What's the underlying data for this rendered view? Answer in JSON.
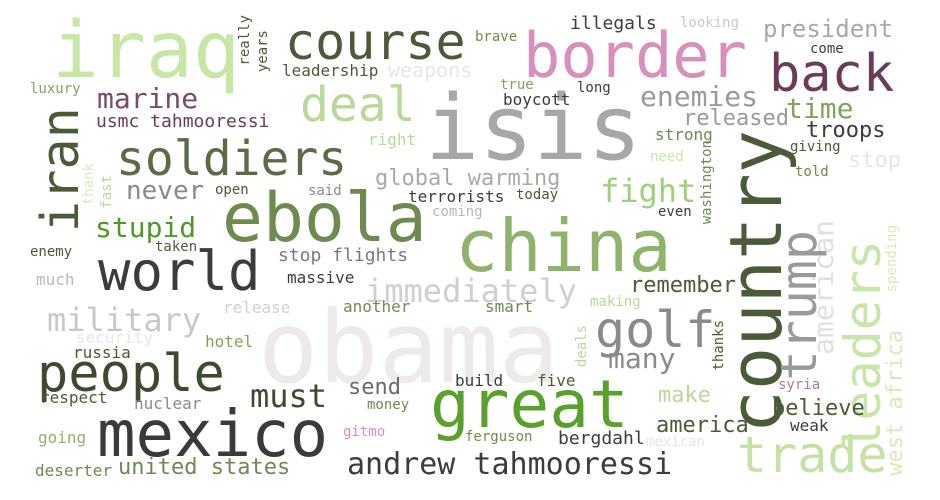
{
  "colors": {
    "background": "#ffffff",
    "dark": "#3a3a3a",
    "dark_green": "#4d5e3a",
    "green": "#5aa02c",
    "mid_green": "#7fa45a",
    "light_green": "#c5e8a4",
    "pink": "#d68fb8",
    "maroon": "#6b3c5a",
    "gray": "#a8a8a8",
    "light_gray": "#e8e6e6"
  },
  "words": [
    {
      "text": "obama",
      "color": "#eeeaea"
    },
    {
      "text": "isis",
      "color": "#a8a6a6"
    },
    {
      "text": "china",
      "color": "#8fb36a"
    },
    {
      "text": "border",
      "color": "#d88fbb"
    },
    {
      "text": "iraq",
      "color": "#c8e7a6"
    },
    {
      "text": "ebola",
      "color": "#6e8a50"
    },
    {
      "text": "country",
      "color": "#4b5a38"
    },
    {
      "text": "great",
      "color": "#5aa02c"
    },
    {
      "text": "mexico",
      "color": "#3a3a3a"
    },
    {
      "text": "world",
      "color": "#3c3c3c"
    },
    {
      "text": "course",
      "color": "#4b5a38"
    },
    {
      "text": "soldiers",
      "color": "#5a6b46"
    },
    {
      "text": "trump",
      "color": "#9a9a9a"
    },
    {
      "text": "back",
      "color": "#6b3c5a"
    },
    {
      "text": "trade",
      "color": "#c5e1a5"
    },
    {
      "text": "iran",
      "color": "#4b5a38"
    },
    {
      "text": "deal",
      "color": "#b8d99a"
    },
    {
      "text": "people",
      "color": "#3e4a30"
    },
    {
      "text": "golf",
      "color": "#8a8a8a"
    },
    {
      "text": "leaders",
      "color": "#c8e6a8"
    },
    {
      "text": "andrew tahmooressi",
      "color": "#3c3c3c"
    },
    {
      "text": "immediately",
      "color": "#cfcfcf"
    },
    {
      "text": "military",
      "color": "#c8c8c8"
    },
    {
      "text": "fight",
      "color": "#9fcf7a"
    },
    {
      "text": "must",
      "color": "#3e4a30"
    },
    {
      "text": "marine",
      "color": "#7a4a6a"
    },
    {
      "text": "enemies",
      "color": "#9a9a9a"
    },
    {
      "text": "stupid",
      "color": "#4f9a25"
    },
    {
      "text": "many",
      "color": "#8a8a8a"
    },
    {
      "text": "american",
      "color": "#e0e0e0"
    },
    {
      "text": "time",
      "color": "#7fa45a"
    },
    {
      "text": "never",
      "color": "#8a8a8a"
    },
    {
      "text": "troops",
      "color": "#3c3c3c"
    },
    {
      "text": "global warming",
      "color": "#a8a8a8"
    },
    {
      "text": "released",
      "color": "#9a9a9a"
    },
    {
      "text": "president",
      "color": "#a8a8a8"
    },
    {
      "text": "remember",
      "color": "#4b5a38"
    },
    {
      "text": "united states",
      "color": "#6e8a50"
    },
    {
      "text": "west africa",
      "color": "#d5ecbd"
    },
    {
      "text": "believe",
      "color": "#4b5a38"
    },
    {
      "text": "stop flights",
      "color": "#7a7a7a"
    },
    {
      "text": "america",
      "color": "#4b5a38"
    },
    {
      "text": "make",
      "color": "#b8d99a"
    },
    {
      "text": "send",
      "color": "#6a6a6a"
    },
    {
      "text": "weapons",
      "color": "#e6e6e6"
    },
    {
      "text": "usmc tahmooressi",
      "color": "#6b3c5a"
    },
    {
      "text": "bergdahl",
      "color": "#3c3c3c"
    },
    {
      "text": "terrorists",
      "color": "#3c3c3c"
    },
    {
      "text": "illegals",
      "color": "#3c3c3c"
    },
    {
      "text": "leadership",
      "color": "#4b5a38"
    },
    {
      "text": "boycott",
      "color": "#3c3c3c"
    },
    {
      "text": "strong",
      "color": "#6e8a50"
    },
    {
      "text": "right",
      "color": "#b8d99a"
    },
    {
      "text": "weak",
      "color": "#3c3c3c"
    },
    {
      "text": "build",
      "color": "#3c3c3c"
    },
    {
      "text": "five",
      "color": "#4b5a38"
    },
    {
      "text": "russia",
      "color": "#4b5a38"
    },
    {
      "text": "nuclear",
      "color": "#8a8a8a"
    },
    {
      "text": "respect",
      "color": "#4b5a38"
    },
    {
      "text": "deserter",
      "color": "#6e8a50"
    },
    {
      "text": "going",
      "color": "#8fb36a"
    },
    {
      "text": "hotel",
      "color": "#7fa45a"
    },
    {
      "text": "security",
      "color": "#e6e6e6"
    },
    {
      "text": "much",
      "color": "#b8b8b8"
    },
    {
      "text": "enemy",
      "color": "#4b5a38"
    },
    {
      "text": "taken",
      "color": "#4b5a38"
    },
    {
      "text": "open",
      "color": "#4b5a38"
    },
    {
      "text": "said",
      "color": "#8a8a8a"
    },
    {
      "text": "coming",
      "color": "#b8b8b8"
    },
    {
      "text": "today",
      "color": "#4b5a38"
    },
    {
      "text": "massive",
      "color": "#3c3c3c"
    },
    {
      "text": "release",
      "color": "#d0d0d0"
    },
    {
      "text": "another",
      "color": "#6e8a50"
    },
    {
      "text": "smart",
      "color": "#6e8a50"
    },
    {
      "text": "making",
      "color": "#b8d99a"
    },
    {
      "text": "deals",
      "color": "#b8d99a"
    },
    {
      "text": "thanks",
      "color": "#4b5a38"
    },
    {
      "text": "syria",
      "color": "#b07a9a"
    },
    {
      "text": "money",
      "color": "#6e8a50"
    },
    {
      "text": "gitmo",
      "color": "#d88fbb"
    },
    {
      "text": "ferguson",
      "color": "#6e8a50"
    },
    {
      "text": "mexican",
      "color": "#e6e6e6"
    },
    {
      "text": "brave",
      "color": "#6e8a50"
    },
    {
      "text": "looking",
      "color": "#c8c8c8"
    },
    {
      "text": "come",
      "color": "#3c3c3c"
    },
    {
      "text": "really",
      "color": "#4b5a38"
    },
    {
      "text": "years",
      "color": "#4b5a38"
    },
    {
      "text": "true",
      "color": "#7fa45a"
    },
    {
      "text": "long",
      "color": "#3c3c3c"
    },
    {
      "text": "luxury",
      "color": "#7fa45a"
    },
    {
      "text": "thank",
      "color": "#d5ecbd"
    },
    {
      "text": "fast",
      "color": "#b8d99a"
    },
    {
      "text": "need",
      "color": "#c8e6a8"
    },
    {
      "text": "washington",
      "color": "#6e8a50"
    },
    {
      "text": "even",
      "color": "#3c3c3c"
    },
    {
      "text": "giving",
      "color": "#4b5a38"
    },
    {
      "text": "told",
      "color": "#6e8a50"
    },
    {
      "text": "stop",
      "color": "#e6e6e6"
    },
    {
      "text": "spending",
      "color": "#d5ecbd"
    }
  ]
}
